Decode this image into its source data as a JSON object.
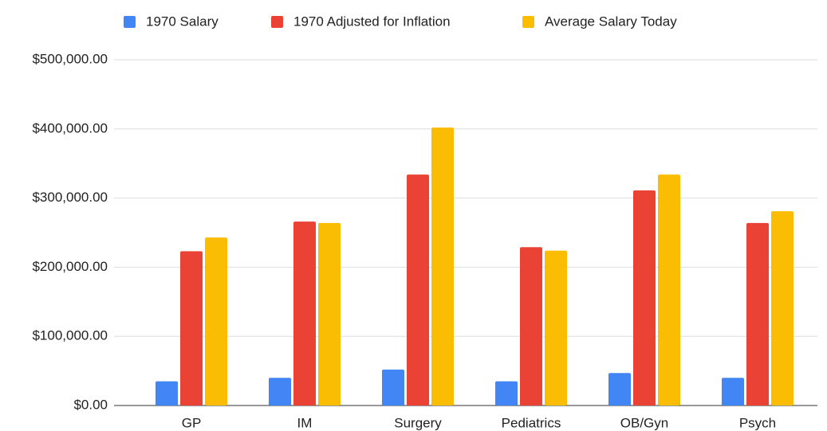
{
  "chart_data": {
    "type": "bar",
    "categories": [
      "GP",
      "IM",
      "Surgery",
      "Pediatrics",
      "OB/Gyn",
      "Psych"
    ],
    "series": [
      {
        "name": "1970 Salary",
        "color": "#4285f4",
        "values": [
          35000,
          40000,
          52000,
          35000,
          47000,
          40000
        ]
      },
      {
        "name": "1970 Adjusted for Inflation",
        "color": "#ea4335",
        "values": [
          223000,
          266000,
          334000,
          229000,
          311000,
          264000
        ]
      },
      {
        "name": "Average Salary Today",
        "color": "#fbbc04",
        "values": [
          243000,
          264000,
          402000,
          224000,
          334000,
          281000
        ]
      }
    ],
    "ylim": [
      0,
      500000
    ],
    "yticks": [
      {
        "value": 0,
        "label": "$0.00"
      },
      {
        "value": 100000,
        "label": "$100,000.00"
      },
      {
        "value": 200000,
        "label": "$200,000.00"
      },
      {
        "value": 300000,
        "label": "$300,000.00"
      },
      {
        "value": 400000,
        "label": "$400,000.00"
      },
      {
        "value": 500000,
        "label": "$500,000.00"
      }
    ],
    "grid": true,
    "legend": "top"
  }
}
